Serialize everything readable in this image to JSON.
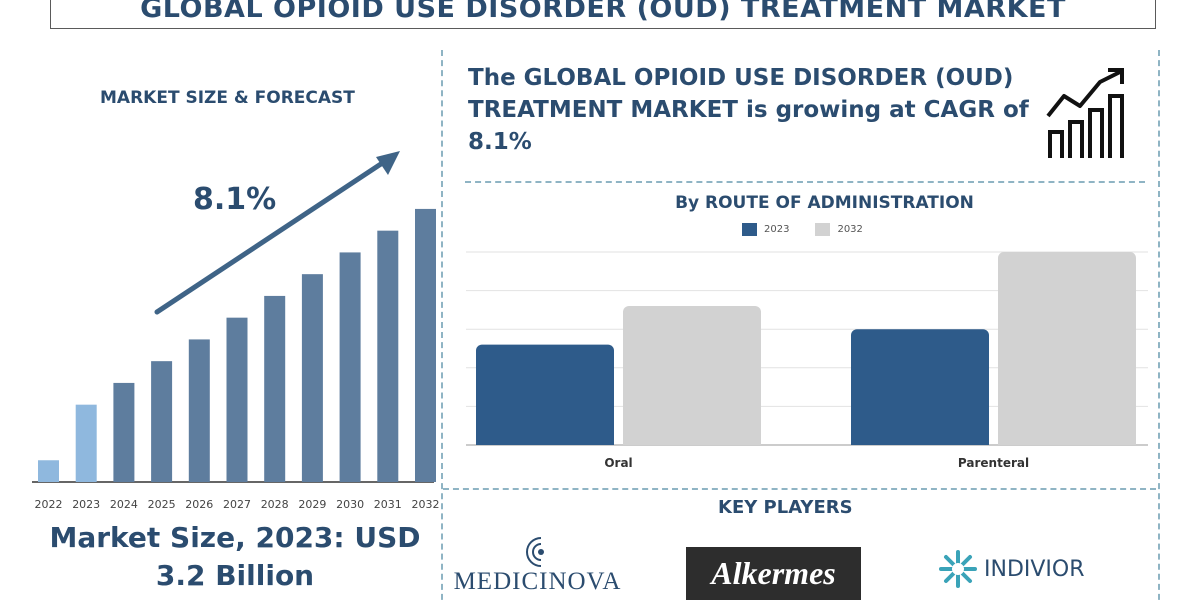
{
  "title": "GLOBAL OPIOID USE DISORDER (OUD) TREATMENT MARKET",
  "left_panel": {
    "subtitle": "MARKET SIZE & FORECAST",
    "cagr_label": "8.1%",
    "market_size_line1": "Market Size, 2023: USD",
    "market_size_line2": "3.2 Billion"
  },
  "headline": "The GLOBAL OPIOID USE DISORDER (OUD) TREATMENT MARKET is growing at CAGR of 8.1%",
  "icon": "growth-chart-icon",
  "key_players": {
    "title": "KEY PLAYERS",
    "players": [
      "MEDICINOVA",
      "Alkermes",
      "INDIVIOR"
    ]
  },
  "colors": {
    "title_text": "#2b4c6f",
    "bar_dark": "#5e7d9e",
    "bar_light": "#8fb8de",
    "series_2023": "#2e5b8a",
    "series_2032": "#d2d2d2",
    "divider": "#8fb4c4"
  },
  "chart_data": [
    {
      "type": "bar",
      "title": "MARKET SIZE & FORECAST",
      "categories": [
        "2022",
        "2023",
        "2024",
        "2025",
        "2026",
        "2027",
        "2028",
        "2029",
        "2030",
        "2031",
        "2032"
      ],
      "values": [
        0.9,
        3.2,
        4.1,
        5.0,
        5.9,
        6.8,
        7.7,
        8.6,
        9.5,
        10.4,
        11.3
      ],
      "highlight": [
        "2022",
        "2023"
      ],
      "annotation": "8.1%",
      "ylim": [
        0,
        12
      ],
      "grid": false
    },
    {
      "type": "bar",
      "title": "By ROUTE OF ADMINISTRATION",
      "categories": [
        "Oral",
        "Parenteral"
      ],
      "series": [
        {
          "name": "2023",
          "values": [
            1.3,
            1.5
          ]
        },
        {
          "name": "2032",
          "values": [
            1.8,
            2.5
          ]
        }
      ],
      "ylim": [
        0,
        2.5
      ],
      "grid": true,
      "legend": "top-center"
    }
  ]
}
